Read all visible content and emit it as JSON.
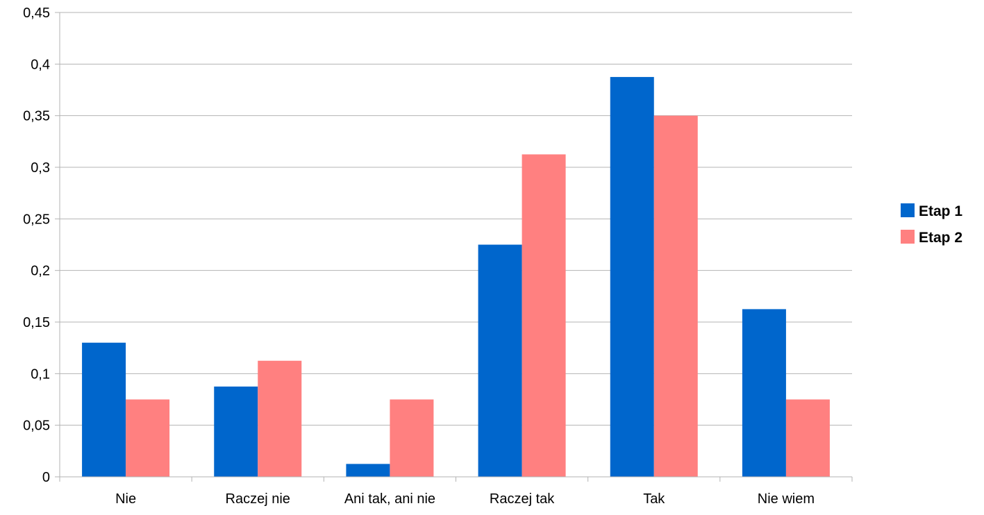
{
  "chart_data": {
    "type": "bar",
    "categories": [
      "Nie",
      "Raczej nie",
      "Ani tak, ani nie",
      "Raczej tak",
      "Tak",
      "Nie wiem"
    ],
    "series": [
      {
        "name": "Etap 1",
        "color": "#0066cc",
        "values": [
          0.13,
          0.0875,
          0.0125,
          0.225,
          0.3875,
          0.1625
        ]
      },
      {
        "name": "Etap 2",
        "color": "#ff8080",
        "values": [
          0.075,
          0.1125,
          0.075,
          0.3125,
          0.35,
          0.075
        ]
      }
    ],
    "title": "",
    "xlabel": "",
    "ylabel": "",
    "ylim": [
      0,
      0.45
    ],
    "yticks": [
      0,
      0.05,
      0.1,
      0.15,
      0.2,
      0.25,
      0.3,
      0.35,
      0.4,
      0.45
    ],
    "ytick_labels": [
      "0",
      "0,05",
      "0,1",
      "0,15",
      "0,2",
      "0,25",
      "0,3",
      "0,35",
      "0,4",
      "0,45"
    ],
    "grid": true,
    "legend_position": "right"
  }
}
